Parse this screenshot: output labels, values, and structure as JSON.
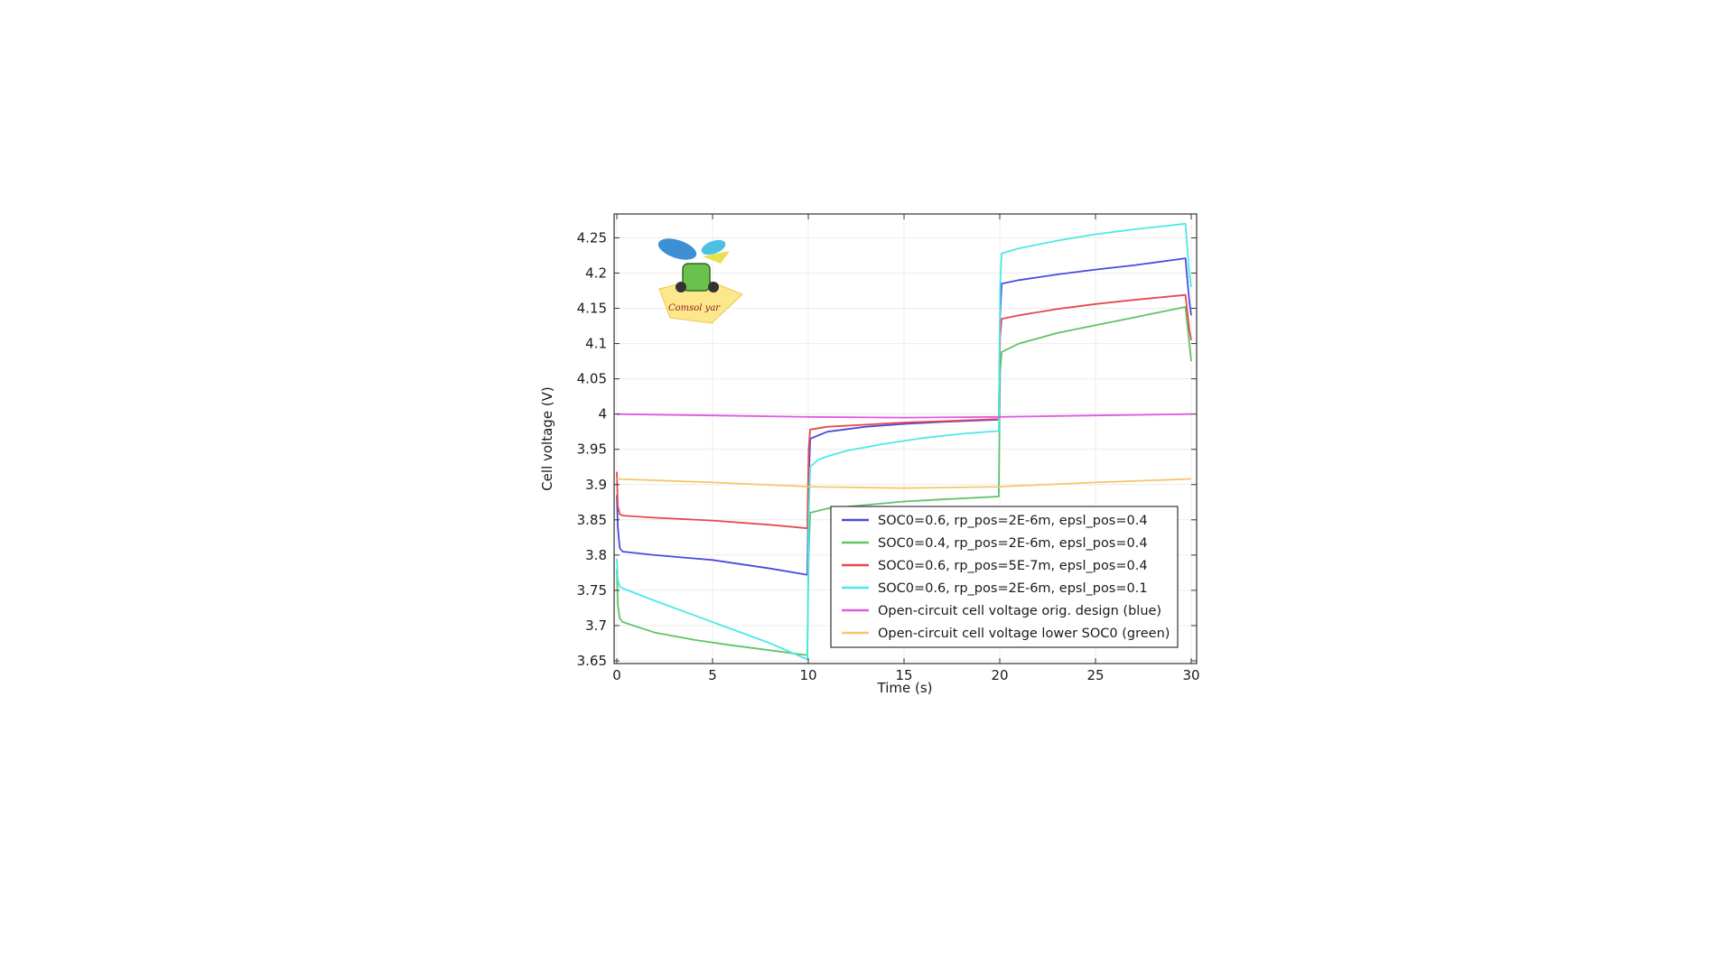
{
  "chart_data": {
    "type": "line",
    "title": "",
    "xlabel": "Time (s)",
    "ylabel": "Cell voltage (V)",
    "xlim": [
      0,
      30
    ],
    "ylim": [
      3.65,
      4.28
    ],
    "xticks": [
      0,
      5,
      10,
      15,
      20,
      25,
      30
    ],
    "xtick_labels": [
      "0",
      "5",
      "10",
      "15",
      "20",
      "25",
      "30"
    ],
    "yticks": [
      3.65,
      3.7,
      3.75,
      3.8,
      3.85,
      3.9,
      3.95,
      4.0,
      4.05,
      4.1,
      4.15,
      4.2,
      4.25
    ],
    "ytick_labels": [
      "3.65",
      "3.7",
      "3.75",
      "3.8",
      "3.85",
      "3.9",
      "3.95",
      "4",
      "4.05",
      "4.1",
      "4.15",
      "4.2",
      "4.25"
    ],
    "grid": true,
    "legend_position": "lower-right",
    "series": [
      {
        "name": "SOC0=0.6, rp_pos=2E-6m, epsl_pos=0.4",
        "color": "#4a4ae0",
        "points": [
          [
            0,
            3.885
          ],
          [
            0.05,
            3.84
          ],
          [
            0.15,
            3.81
          ],
          [
            0.3,
            3.805
          ],
          [
            2,
            3.8
          ],
          [
            5,
            3.793
          ],
          [
            8,
            3.781
          ],
          [
            9.95,
            3.772
          ],
          [
            10.02,
            3.9
          ],
          [
            10.1,
            3.965
          ],
          [
            11,
            3.975
          ],
          [
            13,
            3.982
          ],
          [
            15,
            3.986
          ],
          [
            17,
            3.989
          ],
          [
            19.95,
            3.992
          ],
          [
            20.02,
            4.14
          ],
          [
            20.1,
            4.185
          ],
          [
            21,
            4.19
          ],
          [
            23,
            4.198
          ],
          [
            25,
            4.205
          ],
          [
            27,
            4.211
          ],
          [
            29.7,
            4.221
          ],
          [
            29.9,
            4.16
          ],
          [
            30,
            4.14
          ]
        ]
      },
      {
        "name": "SOC0=0.4, rp_pos=2E-6m, epsl_pos=0.4",
        "color": "#5ec46a",
        "points": [
          [
            0,
            3.78
          ],
          [
            0.05,
            3.73
          ],
          [
            0.15,
            3.71
          ],
          [
            0.3,
            3.705
          ],
          [
            2,
            3.69
          ],
          [
            4,
            3.68
          ],
          [
            6,
            3.672
          ],
          [
            8,
            3.665
          ],
          [
            9.95,
            3.658
          ],
          [
            10.02,
            3.8
          ],
          [
            10.1,
            3.86
          ],
          [
            11,
            3.866
          ],
          [
            13,
            3.871
          ],
          [
            15,
            3.876
          ],
          [
            17,
            3.879
          ],
          [
            19.95,
            3.883
          ],
          [
            20.02,
            4.06
          ],
          [
            20.1,
            4.088
          ],
          [
            21,
            4.1
          ],
          [
            23,
            4.115
          ],
          [
            25,
            4.126
          ],
          [
            27,
            4.137
          ],
          [
            29.7,
            4.152
          ],
          [
            29.9,
            4.1
          ],
          [
            30,
            4.075
          ]
        ]
      },
      {
        "name": "SOC0=0.6, rp_pos=5E-7m, epsl_pos=0.4",
        "color": "#e8484e",
        "points": [
          [
            0,
            3.918
          ],
          [
            0.05,
            3.87
          ],
          [
            0.15,
            3.858
          ],
          [
            0.3,
            3.856
          ],
          [
            2,
            3.853
          ],
          [
            5,
            3.849
          ],
          [
            8,
            3.843
          ],
          [
            9.95,
            3.838
          ],
          [
            10.02,
            3.95
          ],
          [
            10.1,
            3.978
          ],
          [
            11,
            3.982
          ],
          [
            13,
            3.985
          ],
          [
            15,
            3.988
          ],
          [
            17,
            3.99
          ],
          [
            19.95,
            3.993
          ],
          [
            20.02,
            4.11
          ],
          [
            20.1,
            4.135
          ],
          [
            21,
            4.14
          ],
          [
            23,
            4.149
          ],
          [
            25,
            4.156
          ],
          [
            27,
            4.162
          ],
          [
            29.7,
            4.169
          ],
          [
            29.9,
            4.12
          ],
          [
            30,
            4.105
          ]
        ]
      },
      {
        "name": "SOC0=0.6, rp_pos=2E-6m, epsl_pos=0.1",
        "color": "#4de8e8",
        "points": [
          [
            0,
            3.795
          ],
          [
            0.05,
            3.765
          ],
          [
            0.15,
            3.755
          ],
          [
            0.3,
            3.753
          ],
          [
            2,
            3.735
          ],
          [
            4,
            3.715
          ],
          [
            6,
            3.695
          ],
          [
            8,
            3.675
          ],
          [
            9.95,
            3.652
          ],
          [
            10.02,
            3.85
          ],
          [
            10.1,
            3.925
          ],
          [
            10.5,
            3.935
          ],
          [
            11,
            3.94
          ],
          [
            12,
            3.948
          ],
          [
            14,
            3.958
          ],
          [
            16,
            3.966
          ],
          [
            18,
            3.972
          ],
          [
            19.95,
            3.976
          ],
          [
            20.02,
            4.18
          ],
          [
            20.1,
            4.228
          ],
          [
            21,
            4.235
          ],
          [
            23,
            4.246
          ],
          [
            25,
            4.255
          ],
          [
            27,
            4.262
          ],
          [
            29.7,
            4.27
          ],
          [
            29.9,
            4.2
          ],
          [
            30,
            4.18
          ]
        ]
      },
      {
        "name": "Open-circuit cell voltage orig. design (blue)",
        "color": "#e05ae0",
        "points": [
          [
            0,
            4.0
          ],
          [
            5,
            3.998
          ],
          [
            10,
            3.996
          ],
          [
            15,
            3.995
          ],
          [
            20,
            3.996
          ],
          [
            25,
            3.998
          ],
          [
            30,
            4.0
          ]
        ]
      },
      {
        "name": "Open-circuit cell voltage lower SOC0 (green)",
        "color": "#f5c76a",
        "points": [
          [
            0,
            3.908
          ],
          [
            5,
            3.903
          ],
          [
            10,
            3.897
          ],
          [
            15,
            3.895
          ],
          [
            20,
            3.897
          ],
          [
            25,
            3.903
          ],
          [
            30,
            3.908
          ]
        ]
      }
    ]
  },
  "logo": {
    "text": "Comsol yar"
  }
}
